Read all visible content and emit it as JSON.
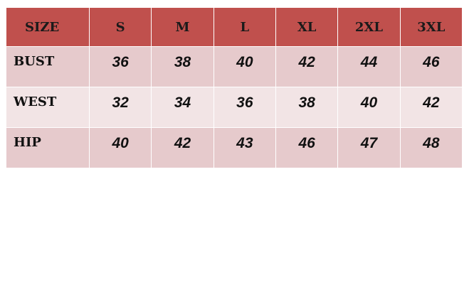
{
  "table": {
    "header": [
      "SIZE",
      "S",
      "M",
      "L",
      "XL",
      "2XL",
      "3XL"
    ],
    "rows": [
      [
        "BUST",
        36,
        38,
        40,
        42,
        44,
        46
      ],
      [
        "WEST",
        32,
        34,
        36,
        38,
        40,
        42
      ],
      [
        "HIP",
        40,
        42,
        43,
        46,
        47,
        48
      ]
    ]
  }
}
